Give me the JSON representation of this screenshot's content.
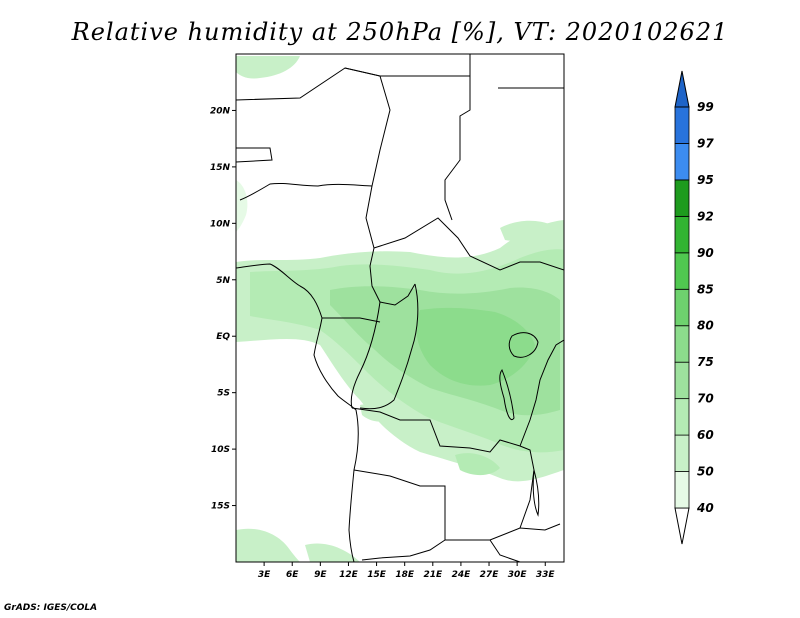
{
  "title": "Relative humidity at 250hPa [%], VT: 2020102621",
  "credit": "GrADS: IGES/COLA",
  "map": {
    "lon_range": [
      0,
      35
    ],
    "lat_range": [
      -20,
      25
    ],
    "lon_ticks": [
      "3E",
      "6E",
      "9E",
      "12E",
      "15E",
      "18E",
      "21E",
      "24E",
      "27E",
      "30E",
      "33E"
    ],
    "lat_ticks": [
      "20N",
      "15N",
      "10N",
      "5N",
      "EQ",
      "5S",
      "10S",
      "15S"
    ]
  },
  "colorbar": {
    "levels": [
      "40",
      "50",
      "60",
      "70",
      "75",
      "80",
      "85",
      "90",
      "92",
      "95",
      "97",
      "99"
    ],
    "colors": [
      "#e6fae6",
      "#c8f0c8",
      "#b4ebb4",
      "#9ee19e",
      "#8cdc8c",
      "#6ed26e",
      "#50c850",
      "#32b432",
      "#1e9b1e",
      "#3c8cf0",
      "#2873dc",
      "#1e64c8"
    ]
  }
}
